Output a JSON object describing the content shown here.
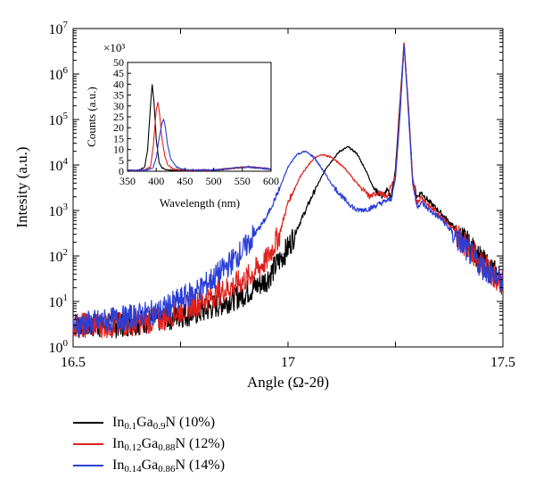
{
  "colors": {
    "axis": "#000000",
    "black_series": "#000000",
    "red_series": "#e0201b",
    "blue_series": "#2a3fd6"
  },
  "chart_data": [
    {
      "type": "line",
      "xlabel": "Angle (Ω-2θ)",
      "ylabel": "Intesity (a.u.)",
      "xlim": [
        16.5,
        17.5
      ],
      "ylim": [
        1,
        10000000
      ],
      "yscale": "log",
      "xticks": [
        "16.5",
        "16.75",
        "17",
        "17.25",
        "17.5"
      ],
      "xtick_labels": [
        "16.5",
        "",
        "17",
        "",
        "17.5"
      ],
      "yticks_exp": [
        "0",
        "1",
        "2",
        "3",
        "4",
        "5",
        "6",
        "7"
      ],
      "ytick_base": "10",
      "grid": false,
      "legend_position": "bottom",
      "series": [
        {
          "name": "In0.1Ga0.9N (10%)",
          "name_parts": [
            "In",
            "0.1",
            "Ga",
            "0.9",
            "N (10%)"
          ],
          "color": "#000000",
          "x": [
            16.5,
            16.6,
            16.7,
            16.8,
            16.9,
            16.95,
            17.0,
            17.03,
            17.06,
            17.09,
            17.12,
            17.14,
            17.16,
            17.18,
            17.2,
            17.22,
            17.23,
            17.24,
            17.25,
            17.26,
            17.27,
            17.28,
            17.29,
            17.3,
            17.31,
            17.33,
            17.36,
            17.4,
            17.45,
            17.5
          ],
          "y": [
            3,
            3,
            4,
            6,
            15,
            30,
            150,
            600,
            2500,
            9000,
            20000,
            25000,
            18000,
            8000,
            3000,
            2000,
            2800,
            2000,
            8000,
            200000,
            4800000,
            200000,
            5000,
            2000,
            2500,
            1500,
            800,
            300,
            80,
            30
          ]
        },
        {
          "name": "In0.12Ga0.88N (12%)",
          "name_parts": [
            "In",
            "0.12",
            "Ga",
            "0.88",
            "N (12%)"
          ],
          "color": "#e0201b",
          "x": [
            16.5,
            16.6,
            16.7,
            16.8,
            16.9,
            16.95,
            16.98,
            17.0,
            17.03,
            17.06,
            17.08,
            17.1,
            17.13,
            17.16,
            17.19,
            17.21,
            17.23,
            17.25,
            17.26,
            17.27,
            17.28,
            17.29,
            17.3,
            17.31,
            17.33,
            17.36,
            17.4,
            17.45,
            17.5
          ],
          "y": [
            3,
            3,
            4,
            10,
            30,
            80,
            300,
            1500,
            6000,
            14000,
            17000,
            15000,
            9000,
            4000,
            2000,
            2500,
            2000,
            6000,
            150000,
            5000000,
            200000,
            5000,
            1500,
            2000,
            1200,
            700,
            250,
            70,
            25
          ]
        },
        {
          "name": "In0.14Ga0.86N (14%)",
          "name_parts": [
            "In",
            "0.14",
            "Ga",
            "0.86",
            "N (14%)"
          ],
          "color": "#2a3fd6",
          "x": [
            16.5,
            16.6,
            16.7,
            16.8,
            16.85,
            16.9,
            16.95,
            16.98,
            17.0,
            17.02,
            17.04,
            17.06,
            17.08,
            17.1,
            17.13,
            17.16,
            17.19,
            17.22,
            17.24,
            17.25,
            17.26,
            17.27,
            17.28,
            17.29,
            17.3,
            17.31,
            17.33,
            17.36,
            17.4,
            17.45,
            17.5
          ],
          "y": [
            3,
            4,
            6,
            20,
            50,
            150,
            700,
            3000,
            9000,
            17000,
            20000,
            15000,
            8000,
            4000,
            1800,
            1000,
            1100,
            1500,
            1800,
            5000,
            100000,
            4500000,
            150000,
            4000,
            1200,
            1500,
            1000,
            600,
            200,
            60,
            25
          ]
        }
      ]
    },
    {
      "type": "line",
      "inset": true,
      "xlabel": "Wavelength (nm)",
      "ylabel": "Counts (a.u.)",
      "multiplier": "×10³",
      "xlim": [
        350,
        600
      ],
      "ylim": [
        0,
        50
      ],
      "xticks": [
        "350",
        "400",
        "450",
        "500",
        "550",
        "600"
      ],
      "yticks": [
        "0",
        "5",
        "10",
        "15",
        "20",
        "25",
        "30",
        "35",
        "40",
        "45",
        "50"
      ],
      "grid": false,
      "series": [
        {
          "color": "#000000",
          "x": [
            350,
            370,
            380,
            385,
            390,
            393,
            396,
            400,
            405,
            410,
            420,
            440,
            500,
            540,
            560,
            580,
            600
          ],
          "y": [
            0.3,
            0.5,
            2,
            10,
            30,
            40,
            32,
            15,
            4,
            1.5,
            0.6,
            0.4,
            0.5,
            1.5,
            2,
            1.5,
            1
          ]
        },
        {
          "color": "#e0201b",
          "x": [
            350,
            380,
            390,
            395,
            400,
            403,
            406,
            410,
            415,
            420,
            430,
            450,
            500,
            540,
            560,
            580,
            600
          ],
          "y": [
            0.3,
            0.5,
            2,
            12,
            28,
            32,
            26,
            15,
            7,
            3,
            1,
            0.5,
            0.5,
            1.5,
            2,
            1.5,
            1
          ]
        },
        {
          "color": "#2a3fd6",
          "x": [
            350,
            385,
            395,
            400,
            405,
            410,
            413,
            416,
            420,
            425,
            435,
            450,
            500,
            540,
            560,
            580,
            600
          ],
          "y": [
            0.3,
            0.5,
            2,
            6,
            15,
            22,
            24,
            20,
            12,
            6,
            2,
            0.6,
            0.5,
            1.5,
            2,
            1.5,
            1
          ]
        }
      ]
    }
  ]
}
